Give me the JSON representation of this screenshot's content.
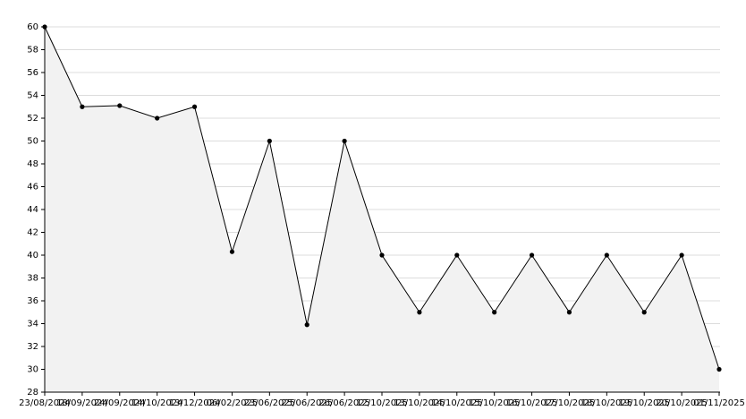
{
  "chart_data": {
    "type": "area",
    "categories": [
      "23/08/2024",
      "18/09/2024",
      "24/09/2024",
      "14/10/2024",
      "13/12/2024",
      "06/02/2025",
      "23/06/2025",
      "25/06/2025",
      "26/06/2025",
      "12/10/2025",
      "13/10/2025",
      "14/10/2025",
      "15/10/2025",
      "16/10/2025",
      "17/10/2025",
      "18/10/2025",
      "19/10/2025",
      "20/10/2025",
      "01/11/2025"
    ],
    "values": [
      60,
      53,
      53.1,
      52,
      53,
      40.3,
      50,
      33.9,
      50,
      40,
      35,
      40,
      35,
      40,
      35,
      40,
      35,
      40,
      30
    ],
    "color": "#000000",
    "fill": "#f2f2f2",
    "ylim": [
      28,
      60
    ],
    "yticks": [
      28,
      30,
      32,
      34,
      36,
      38,
      40,
      42,
      44,
      46,
      48,
      50,
      52,
      54,
      56,
      58,
      60
    ],
    "grid": true
  }
}
